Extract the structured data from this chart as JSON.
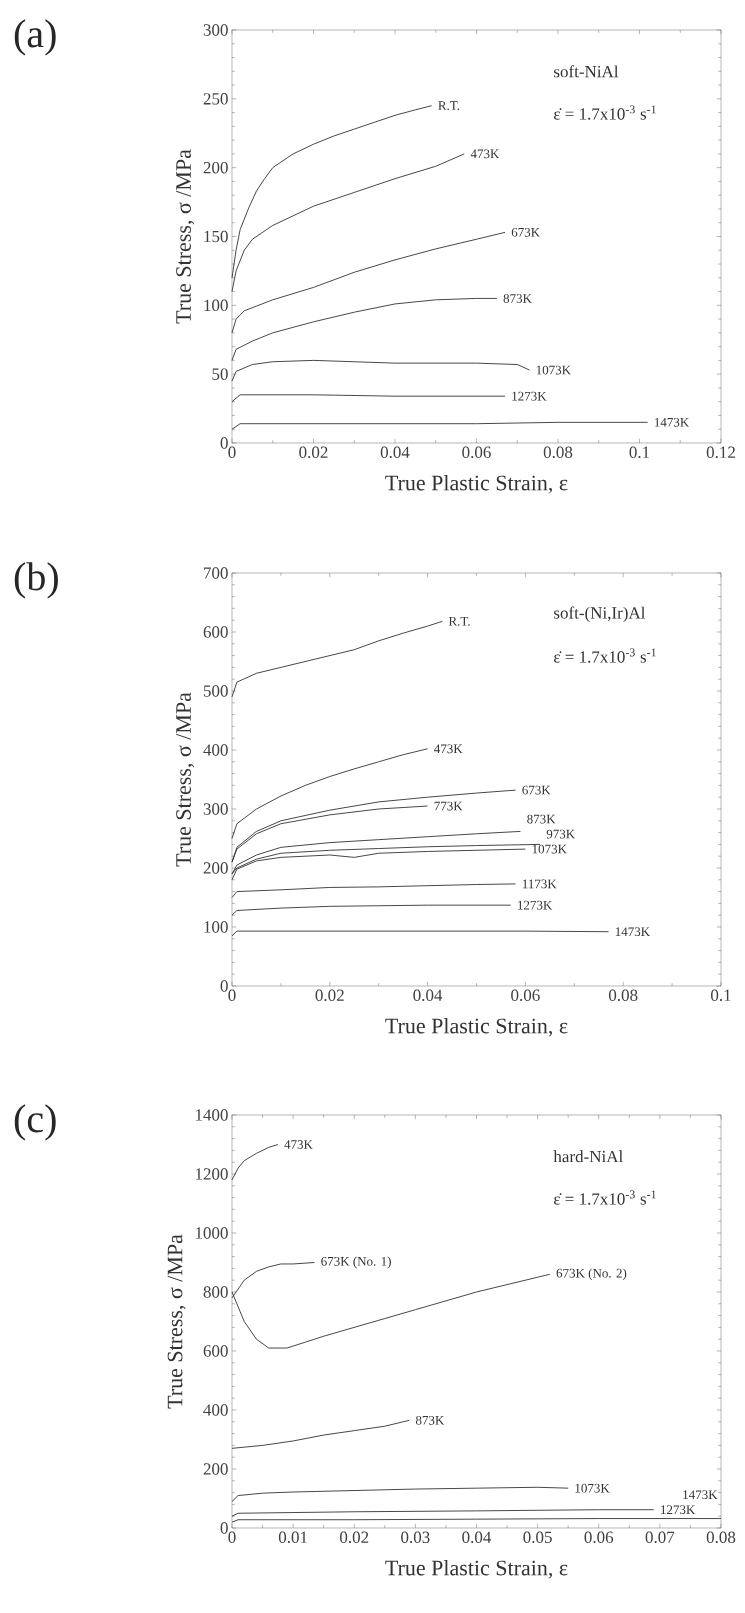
{
  "chart_data": [
    {
      "type": "line",
      "title": "(a)",
      "xlabel": "True Plastic Strain, ε",
      "ylabel": "True Stress, σ /MPa",
      "annotations": [
        "soft-NiAl",
        "ε̇ = 1.7x10$^{-3}$ s$^{-1}$"
      ],
      "xlim": [
        0,
        0.12
      ],
      "ylim": [
        0,
        300
      ],
      "xticks": [
        0,
        0.02,
        0.04,
        0.06,
        0.08,
        0.1,
        0.12
      ],
      "yticks": [
        0,
        50,
        100,
        150,
        200,
        250,
        300
      ],
      "series": [
        {
          "name": "R.T.",
          "color": "#333333",
          "x": [
            0,
            0.001,
            0.002,
            0.004,
            0.006,
            0.008,
            0.01,
            0.015,
            0.02,
            0.025,
            0.03,
            0.035,
            0.04,
            0.045,
            0.049
          ],
          "values": [
            120,
            140,
            155,
            170,
            183,
            192,
            200,
            210,
            217,
            223,
            228,
            233,
            238,
            242,
            245
          ]
        },
        {
          "name": "473K",
          "color": "#333333",
          "x": [
            0,
            0.001,
            0.003,
            0.005,
            0.01,
            0.015,
            0.02,
            0.03,
            0.04,
            0.05,
            0.057
          ],
          "values": [
            110,
            125,
            140,
            148,
            158,
            165,
            172,
            182,
            192,
            201,
            210
          ]
        },
        {
          "name": "673K",
          "color": "#333333",
          "x": [
            0,
            0.001,
            0.003,
            0.01,
            0.02,
            0.03,
            0.04,
            0.05,
            0.06,
            0.067
          ],
          "values": [
            80,
            90,
            96,
            104,
            113,
            124,
            133,
            141,
            148,
            153
          ]
        },
        {
          "name": "873K",
          "color": "#333333",
          "x": [
            0,
            0.001,
            0.005,
            0.01,
            0.02,
            0.03,
            0.04,
            0.05,
            0.06,
            0.065
          ],
          "values": [
            60,
            68,
            74,
            80,
            88,
            95,
            101,
            104,
            105,
            105
          ]
        },
        {
          "name": "1073K",
          "color": "#333333",
          "x": [
            0,
            0.001,
            0.005,
            0.01,
            0.02,
            0.03,
            0.04,
            0.05,
            0.06,
            0.07,
            0.073
          ],
          "values": [
            45,
            52,
            57,
            59,
            60,
            59,
            58,
            58,
            58,
            57,
            53
          ]
        },
        {
          "name": "1273K",
          "color": "#333333",
          "x": [
            0,
            0.002,
            0.02,
            0.04,
            0.06,
            0.067
          ],
          "values": [
            30,
            35,
            35,
            34,
            34,
            34
          ]
        },
        {
          "name": "1473K",
          "color": "#333333",
          "x": [
            0,
            0.002,
            0.02,
            0.04,
            0.06,
            0.08,
            0.1,
            0.102
          ],
          "values": [
            10,
            14,
            14,
            14,
            14,
            15,
            15,
            15
          ]
        }
      ]
    },
    {
      "type": "line",
      "title": "(b)",
      "xlabel": "True Plastic Strain, ε",
      "ylabel": "True Stress, σ /MPa",
      "annotations": [
        "soft-(Ni,Ir)Al",
        "ε̇ = 1.7x10$^{-3}$ s$^{-1}$"
      ],
      "xlim": [
        0,
        0.1
      ],
      "ylim": [
        0,
        700
      ],
      "xticks": [
        0,
        0.02,
        0.04,
        0.06,
        0.08,
        0.1
      ],
      "yticks": [
        0,
        100,
        200,
        300,
        400,
        500,
        600,
        700
      ],
      "series": [
        {
          "name": "R.T.",
          "color": "#333333",
          "x": [
            0,
            0.001,
            0.005,
            0.01,
            0.015,
            0.02,
            0.025,
            0.03,
            0.035,
            0.04,
            0.043
          ],
          "values": [
            490,
            515,
            530,
            540,
            550,
            560,
            570,
            585,
            598,
            610,
            618
          ]
        },
        {
          "name": "473K",
          "color": "#333333",
          "x": [
            0,
            0.001,
            0.005,
            0.01,
            0.015,
            0.02,
            0.025,
            0.03,
            0.035,
            0.04
          ],
          "values": [
            250,
            275,
            300,
            322,
            340,
            355,
            368,
            380,
            392,
            402
          ]
        },
        {
          "name": "673K",
          "color": "#333333",
          "x": [
            0,
            0.001,
            0.005,
            0.01,
            0.02,
            0.03,
            0.04,
            0.05,
            0.058
          ],
          "values": [
            210,
            235,
            262,
            280,
            298,
            312,
            320,
            327,
            332
          ]
        },
        {
          "name": "773K",
          "color": "#333333",
          "x": [
            0,
            0.001,
            0.005,
            0.01,
            0.02,
            0.03,
            0.04
          ],
          "values": [
            210,
            232,
            258,
            275,
            290,
            300,
            305
          ]
        },
        {
          "name": "873K",
          "color": "#333333",
          "x": [
            0,
            0.001,
            0.005,
            0.01,
            0.02,
            0.03,
            0.04,
            0.05,
            0.059
          ],
          "values": [
            190,
            205,
            222,
            235,
            243,
            248,
            253,
            258,
            262
          ]
        },
        {
          "name": "973K",
          "color": "#333333",
          "x": [
            0,
            0.001,
            0.005,
            0.01,
            0.02,
            0.03,
            0.04,
            0.05,
            0.063
          ],
          "values": [
            190,
            200,
            215,
            225,
            230,
            233,
            236,
            238,
            240
          ]
        },
        {
          "name": "1073K",
          "color": "#333333",
          "x": [
            0,
            0.001,
            0.005,
            0.01,
            0.02,
            0.025,
            0.03,
            0.04,
            0.05,
            0.06
          ],
          "values": [
            180,
            198,
            212,
            218,
            222,
            218,
            225,
            228,
            230,
            232
          ]
        },
        {
          "name": "1173K",
          "color": "#333333",
          "x": [
            0,
            0.001,
            0.01,
            0.02,
            0.03,
            0.04,
            0.05,
            0.058
          ],
          "values": [
            150,
            160,
            163,
            167,
            168,
            170,
            172,
            173
          ]
        },
        {
          "name": "1273K",
          "color": "#333333",
          "x": [
            0,
            0.001,
            0.01,
            0.02,
            0.03,
            0.04,
            0.05,
            0.057
          ],
          "values": [
            120,
            128,
            132,
            135,
            136,
            137,
            137,
            137
          ]
        },
        {
          "name": "1473K",
          "color": "#333333",
          "x": [
            0,
            0.001,
            0.02,
            0.04,
            0.06,
            0.077
          ],
          "values": [
            85,
            93,
            93,
            93,
            93,
            92
          ]
        }
      ]
    },
    {
      "type": "line",
      "title": "(c)",
      "xlabel": "True Plastic Strain, ε",
      "ylabel": "True Stress, σ /MPa",
      "annotations": [
        "hard-NiAl",
        "ε̇ = 1.7x10$^{-3}$ s$^{-1}$"
      ],
      "xlim": [
        0,
        0.08
      ],
      "ylim": [
        0,
        1400
      ],
      "xticks": [
        0,
        0.01,
        0.02,
        0.03,
        0.04,
        0.05,
        0.06,
        0.07,
        0.08
      ],
      "yticks": [
        0,
        200,
        400,
        600,
        800,
        1000,
        1200,
        1400
      ],
      "series": [
        {
          "name": "473K",
          "color": "#333333",
          "x": [
            0,
            0.001,
            0.002,
            0.004,
            0.006,
            0.0075
          ],
          "values": [
            1180,
            1220,
            1245,
            1270,
            1290,
            1300
          ]
        },
        {
          "name": "673K (No. 1)",
          "color": "#333333",
          "x": [
            0,
            0.001,
            0.002,
            0.004,
            0.006,
            0.008,
            0.01,
            0.0135
          ],
          "values": [
            780,
            810,
            840,
            870,
            885,
            895,
            895,
            900
          ]
        },
        {
          "name": "673K (No. 2)",
          "color": "#333333",
          "x": [
            0,
            0.001,
            0.002,
            0.004,
            0.006,
            0.009,
            0.012,
            0.015,
            0.02,
            0.025,
            0.03,
            0.035,
            0.04,
            0.045,
            0.05,
            0.052
          ],
          "values": [
            800,
            750,
            700,
            640,
            610,
            610,
            630,
            650,
            680,
            710,
            740,
            770,
            800,
            825,
            850,
            860
          ]
        },
        {
          "name": "873K",
          "color": "#333333",
          "x": [
            0,
            0.005,
            0.01,
            0.015,
            0.02,
            0.025,
            0.029
          ],
          "values": [
            270,
            280,
            295,
            315,
            330,
            345,
            365
          ]
        },
        {
          "name": "1073K",
          "color": "#333333",
          "x": [
            0,
            0.001,
            0.005,
            0.01,
            0.02,
            0.03,
            0.04,
            0.05,
            0.055
          ],
          "values": [
            90,
            110,
            118,
            122,
            127,
            132,
            135,
            138,
            135
          ]
        },
        {
          "name": "1273K",
          "color": "#333333",
          "x": [
            0,
            0.001,
            0.02,
            0.04,
            0.06,
            0.069
          ],
          "values": [
            40,
            50,
            55,
            58,
            62,
            62
          ]
        },
        {
          "name": "1473K",
          "color": "#333333",
          "x": [
            0,
            0.001,
            0.02,
            0.04,
            0.06,
            0.08
          ],
          "values": [
            20,
            28,
            28,
            30,
            32,
            32
          ]
        }
      ]
    }
  ]
}
